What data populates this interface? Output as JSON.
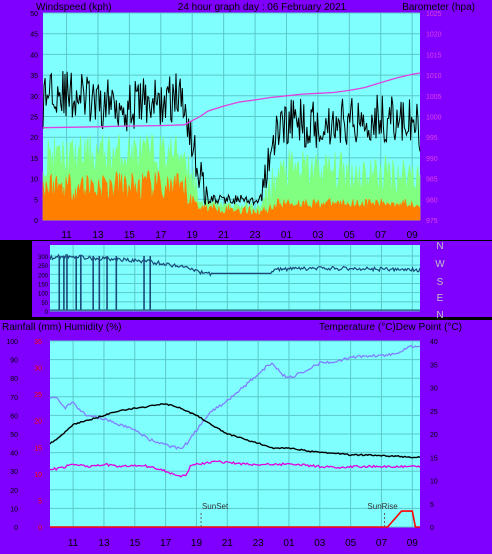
{
  "colors": {
    "panel": "#7f00ff",
    "plot_bg": "#80ffff",
    "grid": "#5cc8c8",
    "gust": "#000000",
    "avg_wind": "#80ff80",
    "wind_low": "#ff8000",
    "barometer": "#e040e0",
    "direction": "#1a4a7a",
    "temperature": "#000000",
    "dewpoint": "#e000e0",
    "humidity": "#8080ff",
    "rainfall": "#ff0000",
    "sun_marker": "#606060"
  },
  "header": {
    "left": "Windspeed (kph)",
    "center": "24 hour graph day : 06 February 2021",
    "right": "Barometer (hpa)"
  },
  "compass": [
    "N",
    "W",
    "S",
    "E",
    "N"
  ],
  "mid_labels": {
    "left": "Rainfall (mm)  Humidity (%)",
    "right": "Temperature (°C)Dew Point (°C)"
  },
  "markers": {
    "sunset": "SunSet",
    "sunrise": "SunRise"
  },
  "chart_data": [
    {
      "type": "line",
      "x_ticks": [
        "11",
        "13",
        "15",
        "17",
        "19",
        "21",
        "23",
        "01",
        "03",
        "05",
        "07",
        "09"
      ],
      "left_axis": {
        "label": "Windspeed (kph)",
        "ticks": [
          0,
          5,
          10,
          15,
          20,
          25,
          30,
          35,
          40,
          45,
          50
        ],
        "range": [
          0,
          50
        ]
      },
      "right_axis": {
        "label": "Barometer (hpa)",
        "ticks": [
          975,
          980,
          985,
          990,
          995,
          1000,
          1005,
          1010,
          1015,
          1020,
          1025
        ],
        "range": [
          975,
          1025
        ]
      },
      "series": [
        {
          "name": "Gust",
          "axis": "left",
          "profile": [
            [
              9.5,
              28
            ],
            [
              10,
              33
            ],
            [
              11,
              30
            ],
            [
              12,
              30
            ],
            [
              13,
              27
            ],
            [
              14,
              29
            ],
            [
              15,
              27
            ],
            [
              16,
              29
            ],
            [
              17,
              28
            ],
            [
              18,
              30
            ],
            [
              18.6,
              28
            ],
            [
              19,
              19
            ],
            [
              19.6,
              9
            ],
            [
              20,
              5
            ],
            [
              22,
              5
            ],
            [
              23,
              4
            ],
            [
              23.4,
              5
            ],
            [
              23.8,
              14
            ],
            [
              24.5,
              22
            ],
            [
              25,
              24
            ],
            [
              27,
              23
            ],
            [
              29,
              24
            ],
            [
              31,
              25
            ],
            [
              32,
              24
            ],
            [
              33,
              23
            ],
            [
              33.5,
              22
            ]
          ]
        },
        {
          "name": "Average",
          "axis": "left",
          "profile": [
            [
              9.5,
              15
            ],
            [
              11,
              15
            ],
            [
              13,
              16
            ],
            [
              15,
              16
            ],
            [
              17,
              16
            ],
            [
              18.5,
              16
            ],
            [
              19,
              10
            ],
            [
              19.6,
              4
            ],
            [
              23.4,
              3
            ],
            [
              24,
              8
            ],
            [
              25,
              12
            ],
            [
              27,
              12
            ],
            [
              30,
              11
            ],
            [
              33.5,
              11
            ]
          ]
        },
        {
          "name": "Low",
          "axis": "left",
          "profile": [
            [
              9.5,
              8
            ],
            [
              11,
              8
            ],
            [
              13,
              8
            ],
            [
              15,
              8
            ],
            [
              17,
              8
            ],
            [
              18.5,
              7
            ],
            [
              19.5,
              3
            ],
            [
              23.5,
              2
            ],
            [
              24.5,
              4
            ],
            [
              27,
              4
            ],
            [
              30,
              4
            ],
            [
              33.5,
              4
            ]
          ]
        },
        {
          "name": "Barometer",
          "axis": "right",
          "points": [
            [
              9.5,
              997.3
            ],
            [
              11,
              997.4
            ],
            [
              13,
              997.5
            ],
            [
              15,
              997.7
            ],
            [
              17,
              997.8
            ],
            [
              18.5,
              998
            ],
            [
              19,
              999
            ],
            [
              19.5,
              1000
            ],
            [
              20,
              1001.3
            ],
            [
              21,
              1002.5
            ],
            [
              22,
              1003.5
            ],
            [
              23,
              1004
            ],
            [
              24,
              1004.6
            ],
            [
              25,
              1005
            ],
            [
              26,
              1005.4
            ],
            [
              27,
              1005.6
            ],
            [
              28,
              1005.8
            ],
            [
              29,
              1006.3
            ],
            [
              30,
              1007
            ],
            [
              31,
              1008.2
            ],
            [
              32,
              1009.3
            ],
            [
              33,
              1010.2
            ],
            [
              33.5,
              1010.5
            ]
          ]
        }
      ]
    },
    {
      "type": "line",
      "name": "Wind direction",
      "y_labels": [
        "300",
        "250",
        "200",
        "150",
        "100",
        "50",
        "0"
      ],
      "range": [
        0,
        360
      ],
      "points": [
        [
          9.5,
          290
        ],
        [
          10.5,
          300
        ],
        [
          11.5,
          295
        ],
        [
          12,
          290
        ],
        [
          13,
          285
        ],
        [
          14,
          280
        ],
        [
          15,
          275
        ],
        [
          16,
          270
        ],
        [
          17,
          255
        ],
        [
          18,
          245
        ],
        [
          18.6,
          235
        ],
        [
          19,
          215
        ],
        [
          19.5,
          205
        ],
        [
          20,
          205
        ],
        [
          23.9,
          205
        ],
        [
          24,
          228
        ],
        [
          25,
          228
        ],
        [
          26,
          230
        ],
        [
          27,
          232
        ],
        [
          28,
          232
        ],
        [
          29,
          232
        ],
        [
          30,
          230
        ],
        [
          31,
          228
        ],
        [
          32,
          225
        ],
        [
          33,
          225
        ],
        [
          33.5,
          225
        ]
      ]
    },
    {
      "type": "line",
      "x_ticks": [
        "11",
        "13",
        "15",
        "17",
        "19",
        "21",
        "23",
        "01",
        "03",
        "05",
        "07",
        "09"
      ],
      "left_axis": {
        "ticks": [
          0,
          10,
          20,
          30,
          40,
          50,
          60,
          70,
          80,
          90,
          100
        ],
        "range": [
          0,
          100
        ]
      },
      "left_red_ticks": [
        0,
        5,
        10,
        15,
        20,
        25,
        30,
        35
      ],
      "right_axis": {
        "ticks": [
          0,
          5,
          10,
          15,
          20,
          25,
          30,
          35,
          40
        ],
        "range": [
          0,
          40
        ]
      },
      "series": [
        {
          "name": "Humidity",
          "axis": "left",
          "points": [
            [
              9.5,
              70
            ],
            [
              10,
              69
            ],
            [
              10.5,
              64
            ],
            [
              11,
              67
            ],
            [
              11.5,
              62
            ],
            [
              12,
              60
            ],
            [
              13,
              58
            ],
            [
              14,
              55
            ],
            [
              15,
              52
            ],
            [
              16,
              47
            ],
            [
              17,
              44
            ],
            [
              18,
              42
            ],
            [
              18.5,
              46
            ],
            [
              19,
              52
            ],
            [
              19.5,
              58
            ],
            [
              20,
              62
            ],
            [
              21,
              68
            ],
            [
              22,
              75
            ],
            [
              23,
              82
            ],
            [
              23.5,
              86
            ],
            [
              24,
              88
            ],
            [
              24.5,
              82
            ],
            [
              25,
              80
            ],
            [
              26,
              84
            ],
            [
              27,
              88
            ],
            [
              28,
              89
            ],
            [
              29,
              91
            ],
            [
              30,
              92
            ],
            [
              31,
              92
            ],
            [
              32,
              93
            ],
            [
              32.5,
              96
            ],
            [
              33,
              97
            ],
            [
              33.5,
              97
            ]
          ]
        },
        {
          "name": "Temperature",
          "axis": "right",
          "points": [
            [
              9.5,
              18
            ],
            [
              10,
              19
            ],
            [
              10.5,
              20.5
            ],
            [
              11,
              22
            ],
            [
              12,
              23
            ],
            [
              13,
              24
            ],
            [
              14,
              25
            ],
            [
              15,
              25.5
            ],
            [
              16,
              26
            ],
            [
              17,
              26.5
            ],
            [
              18,
              25.5
            ],
            [
              19,
              24
            ],
            [
              20,
              22
            ],
            [
              21,
              20
            ],
            [
              22,
              19
            ],
            [
              23,
              18
            ],
            [
              24,
              17
            ],
            [
              25,
              17
            ],
            [
              26,
              16.5
            ],
            [
              27,
              16
            ],
            [
              28,
              15.8
            ],
            [
              29,
              15.5
            ],
            [
              30,
              15.5
            ],
            [
              31,
              15.3
            ],
            [
              32,
              15.2
            ],
            [
              33,
              15
            ],
            [
              33.5,
              15
            ]
          ]
        },
        {
          "name": "Dew Point",
          "axis": "right",
          "points": [
            [
              9.5,
              12.5
            ],
            [
              10,
              12.5
            ],
            [
              11,
              13.5
            ],
            [
              12,
              13
            ],
            [
              13,
              13.5
            ],
            [
              14,
              13
            ],
            [
              15,
              13.3
            ],
            [
              16,
              13
            ],
            [
              17,
              12
            ],
            [
              17.8,
              11
            ],
            [
              18.3,
              11
            ],
            [
              18.6,
              13
            ],
            [
              19,
              13.5
            ],
            [
              20,
              14
            ],
            [
              21,
              14
            ],
            [
              22,
              13.5
            ],
            [
              23,
              13.5
            ],
            [
              24,
              13.5
            ],
            [
              25,
              13.5
            ],
            [
              26,
              13.3
            ],
            [
              27,
              13
            ],
            [
              28,
              12.8
            ],
            [
              29,
              13
            ],
            [
              30,
              13
            ],
            [
              31,
              13
            ],
            [
              32,
              13
            ],
            [
              33,
              13
            ],
            [
              33.5,
              13
            ]
          ]
        },
        {
          "name": "Rainfall",
          "axis": "left",
          "points": [
            [
              9.5,
              0
            ],
            [
              31.4,
              0
            ],
            [
              32,
              2
            ],
            [
              32.3,
              3
            ],
            [
              33,
              3
            ],
            [
              33.2,
              0
            ],
            [
              33.5,
              0
            ]
          ]
        }
      ]
    }
  ]
}
